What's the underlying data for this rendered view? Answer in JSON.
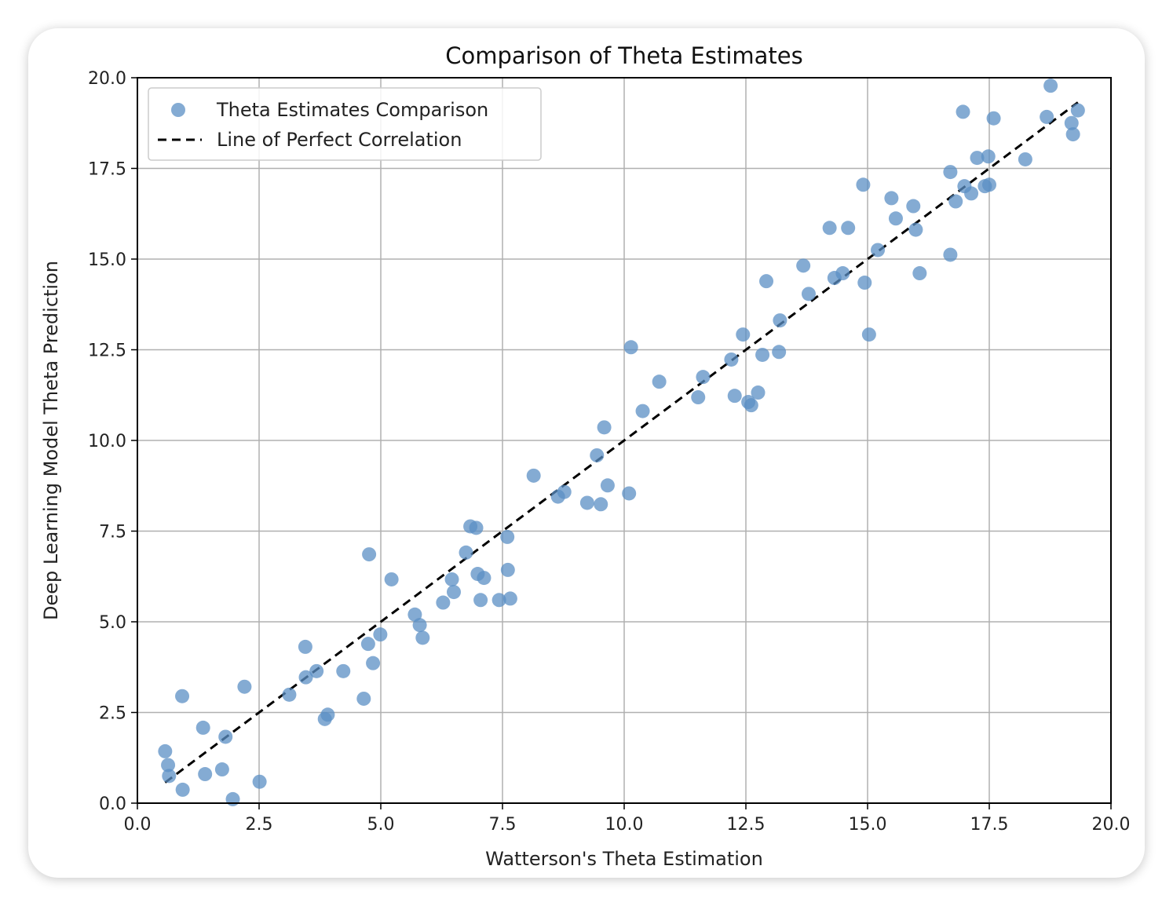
{
  "chart_data": {
    "type": "scatter",
    "title": "Comparison of Theta Estimates",
    "xlabel": "Watterson's Theta Estimation",
    "ylabel": "Deep Learning Model Theta Prediction",
    "xlim": [
      0,
      20
    ],
    "ylim": [
      0,
      20
    ],
    "xticks": [
      "0.0",
      "2.5",
      "5.0",
      "7.5",
      "10.0",
      "12.5",
      "15.0",
      "17.5",
      "20.0"
    ],
    "yticks": [
      "0.0",
      "2.5",
      "5.0",
      "7.5",
      "10.0",
      "12.5",
      "15.0",
      "17.5",
      "20.0"
    ],
    "grid": true,
    "legend_position": "top-left",
    "series": [
      {
        "name": "Theta Estimates Comparison",
        "kind": "scatter",
        "color": "#5b8fc4",
        "points": [
          [
            0.57,
            1.43
          ],
          [
            0.63,
            1.05
          ],
          [
            0.65,
            0.75
          ],
          [
            0.92,
            2.95
          ],
          [
            0.93,
            0.37
          ],
          [
            1.35,
            2.08
          ],
          [
            1.39,
            0.8
          ],
          [
            1.74,
            0.93
          ],
          [
            1.81,
            1.83
          ],
          [
            1.96,
            0.11
          ],
          [
            2.2,
            3.21
          ],
          [
            2.51,
            0.59
          ],
          [
            3.12,
            2.99
          ],
          [
            3.45,
            4.31
          ],
          [
            3.46,
            3.47
          ],
          [
            3.68,
            3.64
          ],
          [
            3.85,
            2.32
          ],
          [
            3.91,
            2.44
          ],
          [
            4.23,
            3.64
          ],
          [
            4.65,
            2.88
          ],
          [
            4.74,
            4.39
          ],
          [
            4.76,
            6.86
          ],
          [
            4.84,
            3.86
          ],
          [
            4.99,
            4.65
          ],
          [
            5.22,
            6.17
          ],
          [
            5.7,
            5.2
          ],
          [
            5.8,
            4.91
          ],
          [
            5.86,
            4.56
          ],
          [
            6.28,
            5.53
          ],
          [
            6.46,
            6.17
          ],
          [
            6.5,
            5.82
          ],
          [
            6.75,
            6.91
          ],
          [
            6.84,
            7.63
          ],
          [
            6.96,
            7.59
          ],
          [
            6.99,
            6.32
          ],
          [
            7.05,
            5.6
          ],
          [
            7.12,
            6.21
          ],
          [
            7.43,
            5.6
          ],
          [
            7.6,
            7.34
          ],
          [
            7.61,
            6.43
          ],
          [
            7.66,
            5.64
          ],
          [
            8.14,
            9.03
          ],
          [
            8.64,
            8.45
          ],
          [
            8.77,
            8.58
          ],
          [
            9.24,
            8.28
          ],
          [
            9.44,
            9.59
          ],
          [
            9.52,
            8.24
          ],
          [
            9.59,
            10.36
          ],
          [
            9.66,
            8.76
          ],
          [
            10.1,
            8.54
          ],
          [
            10.14,
            12.57
          ],
          [
            10.38,
            10.81
          ],
          [
            10.72,
            11.62
          ],
          [
            11.52,
            11.19
          ],
          [
            11.62,
            11.75
          ],
          [
            12.2,
            12.23
          ],
          [
            12.27,
            11.23
          ],
          [
            12.44,
            12.92
          ],
          [
            12.55,
            11.06
          ],
          [
            12.61,
            10.97
          ],
          [
            12.75,
            11.32
          ],
          [
            12.84,
            12.36
          ],
          [
            12.92,
            14.39
          ],
          [
            13.18,
            12.44
          ],
          [
            13.2,
            13.31
          ],
          [
            13.68,
            14.82
          ],
          [
            13.79,
            14.04
          ],
          [
            14.22,
            15.86
          ],
          [
            14.32,
            14.48
          ],
          [
            14.49,
            14.61
          ],
          [
            14.6,
            15.86
          ],
          [
            14.91,
            17.05
          ],
          [
            14.94,
            14.35
          ],
          [
            15.03,
            12.92
          ],
          [
            15.21,
            15.25
          ],
          [
            15.49,
            16.68
          ],
          [
            15.58,
            16.12
          ],
          [
            15.94,
            16.46
          ],
          [
            15.99,
            15.81
          ],
          [
            16.07,
            14.61
          ],
          [
            16.7,
            17.4
          ],
          [
            16.7,
            15.12
          ],
          [
            16.81,
            16.59
          ],
          [
            16.96,
            19.06
          ],
          [
            16.99,
            17.01
          ],
          [
            17.13,
            16.81
          ],
          [
            17.25,
            17.79
          ],
          [
            17.41,
            17.01
          ],
          [
            17.48,
            17.83
          ],
          [
            17.5,
            17.05
          ],
          [
            17.59,
            18.88
          ],
          [
            18.24,
            17.75
          ],
          [
            18.68,
            18.92
          ],
          [
            18.76,
            19.78
          ],
          [
            19.19,
            18.75
          ],
          [
            19.22,
            18.44
          ],
          [
            19.32,
            19.1
          ]
        ]
      },
      {
        "name": "Line of Perfect Correlation",
        "kind": "line",
        "style": "dashed",
        "color": "#000000",
        "x": [
          0.57,
          19.32
        ],
        "y": [
          0.57,
          19.32
        ]
      }
    ]
  }
}
